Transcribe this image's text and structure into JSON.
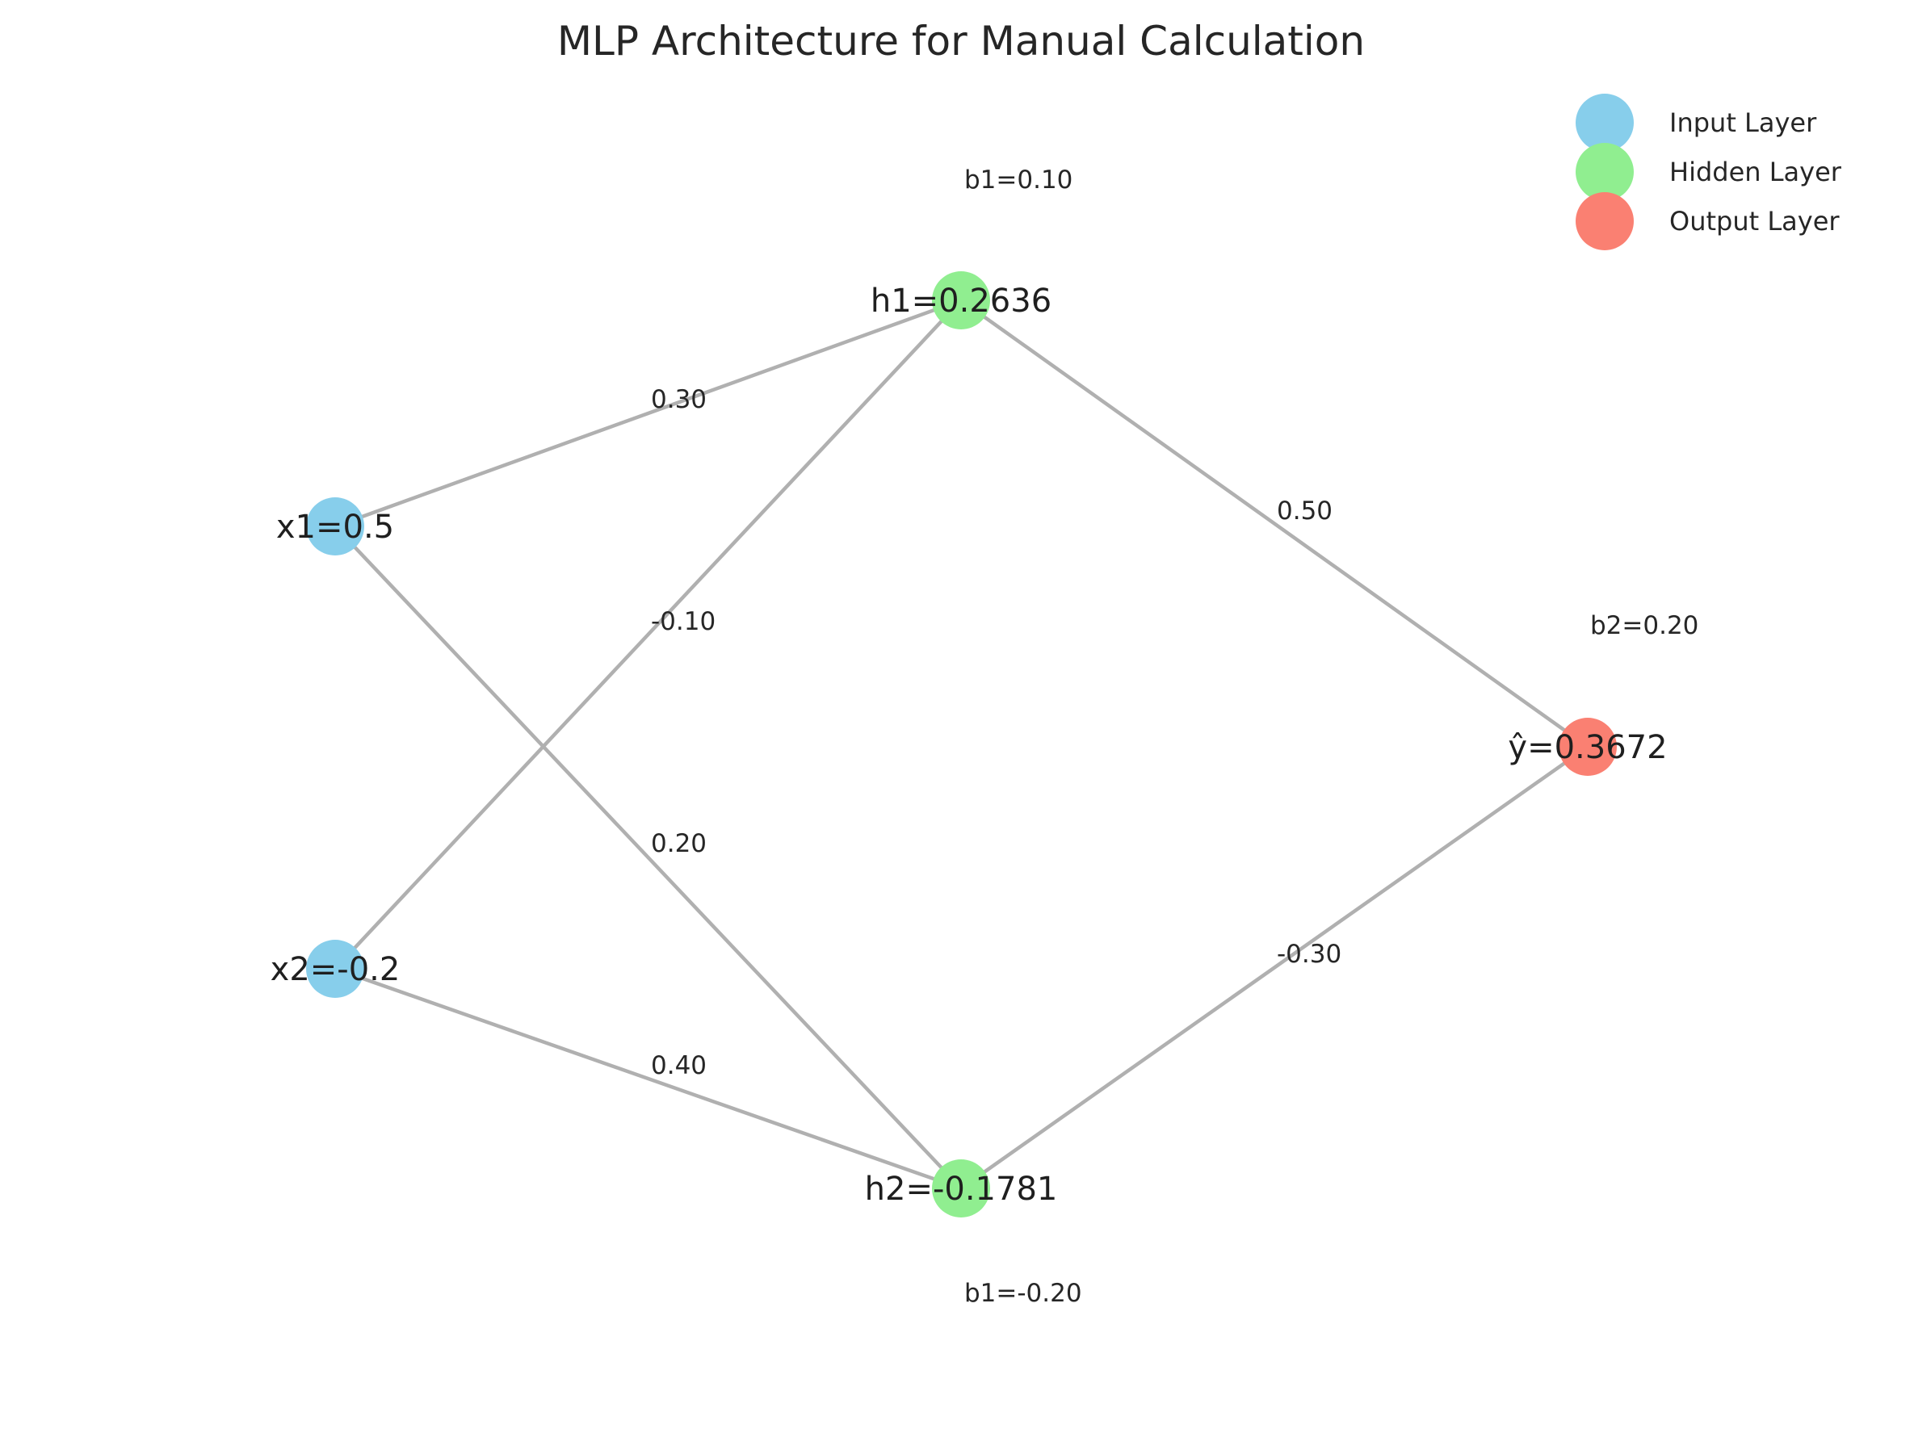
{
  "title": "MLP Architecture for Manual Calculation",
  "colors": {
    "input": "#87CEEB",
    "hidden": "#90EE90",
    "output": "#FA8072",
    "edge": "#b0b0b0",
    "text": "#262626"
  },
  "nodes": [
    {
      "id": "x1",
      "label": "x1=0.5",
      "layer": "input"
    },
    {
      "id": "x2",
      "label": "x2=-0.2",
      "layer": "input"
    },
    {
      "id": "h1",
      "label": "h1=0.2636",
      "layer": "hidden"
    },
    {
      "id": "h2",
      "label": "h2=-0.1781",
      "layer": "hidden"
    },
    {
      "id": "y",
      "label": "ŷ=0.3672",
      "layer": "output"
    }
  ],
  "edges": [
    {
      "from": "x1",
      "to": "h1",
      "weight": "0.30"
    },
    {
      "from": "x1",
      "to": "h2",
      "weight": "0.20"
    },
    {
      "from": "x2",
      "to": "h1",
      "weight": "-0.10"
    },
    {
      "from": "x2",
      "to": "h2",
      "weight": "0.40"
    },
    {
      "from": "h1",
      "to": "y",
      "weight": "0.50"
    },
    {
      "from": "h2",
      "to": "y",
      "weight": "-0.30"
    }
  ],
  "biases": [
    {
      "node": "h1",
      "label": "b1=0.10"
    },
    {
      "node": "h2",
      "label": "b1=-0.20"
    },
    {
      "node": "y",
      "label": "b2=0.20"
    }
  ],
  "legend": [
    {
      "label": "Input Layer",
      "layer": "input"
    },
    {
      "label": "Hidden Layer",
      "layer": "hidden"
    },
    {
      "label": "Output Layer",
      "layer": "output"
    }
  ]
}
